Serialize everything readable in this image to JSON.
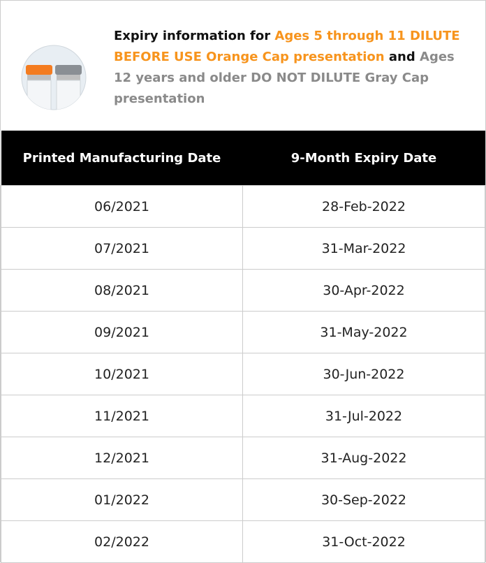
{
  "header": {
    "intro": "Expiry information for",
    "orange_text": "Ages 5 through 11 DILUTE BEFORE USE Orange Cap presentation",
    "joiner": "and",
    "gray_text": "Ages 12 years and older DO NOT DILUTE Gray Cap presentation"
  },
  "table": {
    "columns": [
      "Printed Manufacturing Date",
      "9-Month Expiry Date"
    ],
    "rows": [
      [
        "06/2021",
        "28-Feb-2022"
      ],
      [
        "07/2021",
        "31-Mar-2022"
      ],
      [
        "08/2021",
        "30-Apr-2022"
      ],
      [
        "09/2021",
        "31-May-2022"
      ],
      [
        "10/2021",
        "30-Jun-2022"
      ],
      [
        "11/2021",
        "31-Jul-2022"
      ],
      [
        "12/2021",
        "31-Aug-2022"
      ],
      [
        "01/2022",
        "30-Sep-2022"
      ],
      [
        "02/2022",
        "31-Oct-2022"
      ]
    ]
  }
}
